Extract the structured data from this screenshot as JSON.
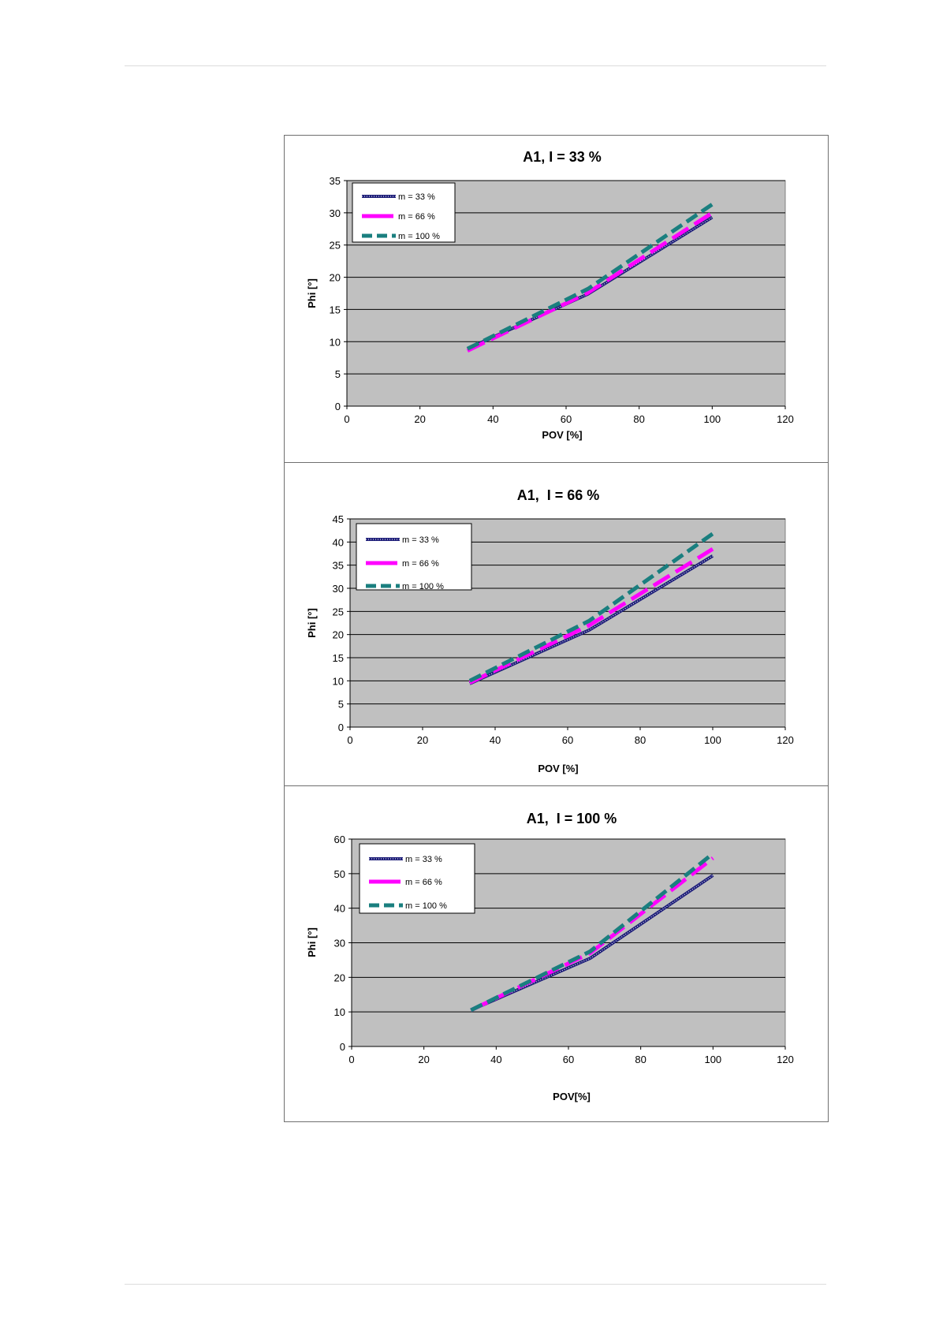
{
  "chart_data": [
    {
      "type": "line",
      "title": "A1, I = 33 %",
      "xlabel": "POV [%]",
      "ylabel": "Phi [°]",
      "xlim": [
        0,
        120
      ],
      "ylim": [
        0,
        35
      ],
      "x_ticks": [
        0,
        20,
        40,
        60,
        80,
        100,
        120
      ],
      "y_ticks": [
        0,
        5,
        10,
        15,
        20,
        25,
        30,
        35
      ],
      "grid": "horizontal",
      "legend_position": "top-left",
      "series": [
        {
          "name": "m = 33 %",
          "color": "#1f1f7a",
          "style": "dotted-solid",
          "x": [
            33,
            66,
            100
          ],
          "y": [
            8.9,
            17.4,
            29.3
          ]
        },
        {
          "name": "m = 66 %",
          "color": "#ff00ff",
          "style": "long-dash",
          "x": [
            33,
            66,
            100
          ],
          "y": [
            8.6,
            17.6,
            30.0
          ]
        },
        {
          "name": "m = 100 %",
          "color": "#1a7f7f",
          "style": "dash",
          "x": [
            33,
            66,
            100
          ],
          "y": [
            8.9,
            18.2,
            31.3
          ]
        }
      ]
    },
    {
      "type": "line",
      "title": "A1,  I = 66 %",
      "xlabel": "POV [%]",
      "ylabel": "Phi [°]",
      "xlim": [
        0,
        120
      ],
      "ylim": [
        0,
        45
      ],
      "x_ticks": [
        0,
        20,
        40,
        60,
        80,
        100,
        120
      ],
      "y_ticks": [
        0,
        5,
        10,
        15,
        20,
        25,
        30,
        35,
        40,
        45
      ],
      "grid": "horizontal",
      "legend_position": "top-left",
      "series": [
        {
          "name": "m = 33 %",
          "color": "#1f1f7a",
          "style": "dotted-solid",
          "x": [
            33,
            66,
            100
          ],
          "y": [
            9.4,
            21.0,
            37.0
          ]
        },
        {
          "name": "m = 66 %",
          "color": "#ff00ff",
          "style": "long-dash",
          "x": [
            33,
            66,
            100
          ],
          "y": [
            9.6,
            22.0,
            38.5
          ]
        },
        {
          "name": "m = 100 %",
          "color": "#1a7f7f",
          "style": "dash",
          "x": [
            33,
            66,
            100
          ],
          "y": [
            10.0,
            23.0,
            41.8
          ]
        }
      ]
    },
    {
      "type": "line",
      "title": "A1,  I = 100 %",
      "xlabel": "POV[%]",
      "ylabel": "Phi [°]",
      "xlim": [
        0,
        120
      ],
      "ylim": [
        0,
        60
      ],
      "x_ticks": [
        0,
        20,
        40,
        60,
        80,
        100,
        120
      ],
      "y_ticks": [
        0,
        10,
        20,
        30,
        40,
        50,
        60
      ],
      "grid": "horizontal",
      "legend_position": "top-left",
      "series": [
        {
          "name": "m = 33 %",
          "color": "#1f1f7a",
          "style": "dotted-solid",
          "x": [
            33,
            66,
            100
          ],
          "y": [
            10.5,
            25.5,
            49.5
          ]
        },
        {
          "name": "m = 66 %",
          "color": "#ff00ff",
          "style": "long-dash",
          "x": [
            33,
            66,
            100
          ],
          "y": [
            10.5,
            27.0,
            54.5
          ]
        },
        {
          "name": "m = 100 %",
          "color": "#1a7f7f",
          "style": "dash",
          "x": [
            33,
            66,
            100
          ],
          "y": [
            10.5,
            27.5,
            55.8
          ]
        }
      ]
    }
  ]
}
